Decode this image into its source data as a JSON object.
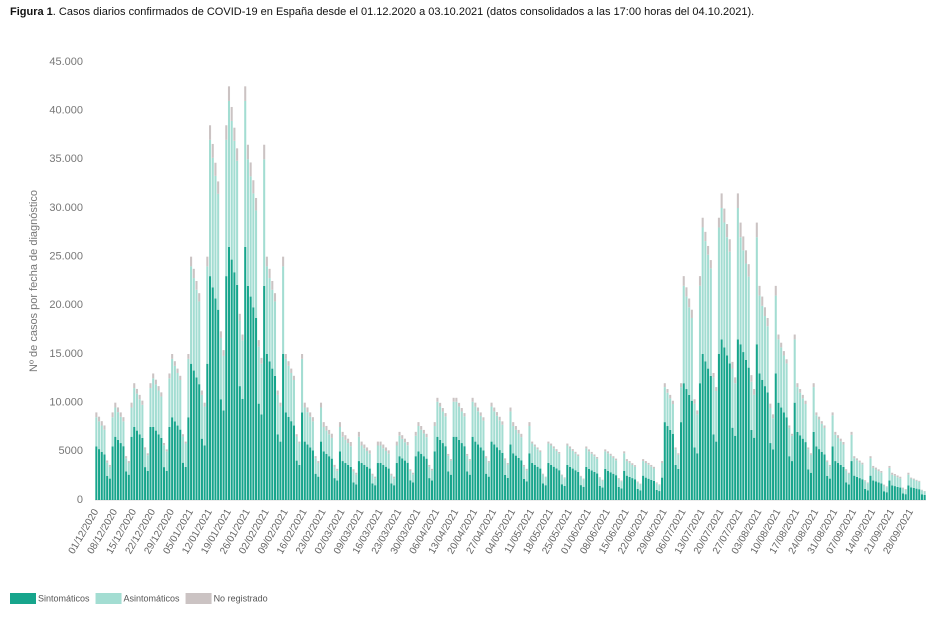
{
  "chart_data": {
    "type": "bar",
    "stacked": true,
    "title_label": "Figura 1",
    "title": ". Casos diarios confirmados de COVID-19 en España desde el 01.12.2020 a 03.10.2021 (datos consolidados a las 17:00 horas del 04.10.2021).",
    "y_label": "Nº de casos por fecha de diagnóstico",
    "ylim": [
      0,
      45000
    ],
    "yticks": [
      0,
      5000,
      {
        "value": 10000,
        "label": "10.000"
      },
      {
        "value": 15000,
        "label": "15.000"
      },
      {
        "value": 20000,
        "label": "20.000"
      },
      {
        "value": 25000,
        "label": "25.000"
      },
      {
        "value": 30000,
        "label": "30.000"
      },
      {
        "value": 35000,
        "label": "35.000"
      },
      {
        "value": 40000,
        "label": "40.000"
      },
      {
        "value": 45000,
        "label": "45.000"
      }
    ],
    "grid": false,
    "categories": [
      "01/12/2020",
      null,
      null,
      null,
      null,
      null,
      null,
      "08/12/2020",
      null,
      null,
      null,
      null,
      null,
      null,
      "15/12/2020",
      null,
      null,
      null,
      null,
      null,
      null,
      "22/12/2020",
      null,
      null,
      null,
      null,
      null,
      null,
      "29/12/2020",
      null,
      null,
      null,
      null,
      null,
      null,
      "05/01/2021",
      null,
      null,
      null,
      null,
      null,
      null,
      "12/01/2021",
      null,
      null,
      null,
      null,
      null,
      null,
      "19/01/2021",
      null,
      null,
      null,
      null,
      null,
      null,
      "26/01/2021",
      null,
      null,
      null,
      null,
      null,
      null,
      "02/02/2021",
      null,
      null,
      null,
      null,
      null,
      null,
      "09/02/2021",
      null,
      null,
      null,
      null,
      null,
      null,
      "16/02/2021",
      null,
      null,
      null,
      null,
      null,
      null,
      "23/02/2021",
      null,
      null,
      null,
      null,
      null,
      null,
      "02/03/2021",
      null,
      null,
      null,
      null,
      null,
      null,
      "09/03/2021",
      null,
      null,
      null,
      null,
      null,
      null,
      "16/03/2021",
      null,
      null,
      null,
      null,
      null,
      null,
      "23/03/2021",
      null,
      null,
      null,
      null,
      null,
      null,
      "30/03/2021",
      null,
      null,
      null,
      null,
      null,
      null,
      "06/04/2021",
      null,
      null,
      null,
      null,
      null,
      null,
      "13/04/2021",
      null,
      null,
      null,
      null,
      null,
      null,
      "20/04/2021",
      null,
      null,
      null,
      null,
      null,
      null,
      "27/04/2021",
      null,
      null,
      null,
      null,
      null,
      null,
      "04/05/2021",
      null,
      null,
      null,
      null,
      null,
      null,
      "11/05/2021",
      null,
      null,
      null,
      null,
      null,
      null,
      "18/05/2021",
      null,
      null,
      null,
      null,
      null,
      null,
      "25/05/2021",
      null,
      null,
      null,
      null,
      null,
      null,
      "01/06/2021",
      null,
      null,
      null,
      null,
      null,
      null,
      "08/06/2021",
      null,
      null,
      null,
      null,
      null,
      null,
      "15/06/2021",
      null,
      null,
      null,
      null,
      null,
      null,
      "22/06/2021",
      null,
      null,
      null,
      null,
      null,
      null,
      "29/06/2021",
      null,
      null,
      null,
      null,
      null,
      null,
      "06/07/2021",
      null,
      null,
      null,
      null,
      null,
      null,
      "13/07/2021",
      null,
      null,
      null,
      null,
      null,
      null,
      "20/07/2021",
      null,
      null,
      null,
      null,
      null,
      null,
      "27/07/2021",
      null,
      null,
      null,
      null,
      null,
      null,
      "03/08/2021",
      null,
      null,
      null,
      null,
      null,
      null,
      "10/08/2021",
      null,
      null,
      null,
      null,
      null,
      null,
      "17/08/2021",
      null,
      null,
      null,
      null,
      null,
      null,
      "24/08/2021",
      null,
      null,
      null,
      null,
      null,
      null,
      "31/08/2021",
      null,
      null,
      null,
      null,
      null,
      null,
      "07/09/2021",
      null,
      null,
      null,
      null,
      null,
      null,
      "14/09/2021",
      null,
      null,
      null,
      null,
      null,
      null,
      "21/09/2021",
      null,
      null,
      null,
      null,
      null,
      null,
      "28/09/2021",
      null,
      null,
      null,
      null,
      null
    ],
    "series": [
      {
        "name": "Sintomáticos",
        "color": "#17a58c",
        "values": [
          5500,
          5230,
          4950,
          4680,
          2480,
          2200,
          5500,
          6500,
          6180,
          5850,
          5530,
          2930,
          2600,
          6500,
          7500,
          7130,
          6750,
          6380,
          3380,
          3000,
          7500,
          7500,
          7130,
          6750,
          6380,
          3380,
          3000,
          7500,
          8500,
          8080,
          7650,
          7230,
          3830,
          3400,
          8500,
          14000,
          13300,
          12600,
          11900,
          6300,
          5600,
          14000,
          23000,
          21850,
          20700,
          19550,
          10350,
          9200,
          23000,
          26000,
          24700,
          23400,
          22100,
          11700,
          10400,
          26000,
          22000,
          20900,
          19800,
          18700,
          9900,
          8800,
          22000,
          15000,
          14250,
          13500,
          12750,
          6750,
          6000,
          15000,
          9000,
          8550,
          8100,
          7650,
          4050,
          3600,
          9000,
          6000,
          5700,
          5400,
          5100,
          2700,
          2400,
          6000,
          5000,
          4750,
          4500,
          4250,
          2250,
          2000,
          5000,
          4000,
          3800,
          3600,
          3400,
          1800,
          1600,
          4000,
          3800,
          3610,
          3420,
          3230,
          1710,
          1520,
          3800,
          3800,
          3610,
          3420,
          3230,
          1710,
          1520,
          3800,
          4500,
          4280,
          4050,
          3830,
          2030,
          1800,
          4500,
          5000,
          4750,
          4500,
          4250,
          2250,
          2000,
          5000,
          6500,
          6180,
          5850,
          5530,
          2930,
          2600,
          6500,
          6500,
          6180,
          5850,
          5530,
          2930,
          2600,
          6500,
          6000,
          5700,
          5400,
          5100,
          2700,
          2400,
          6000,
          5700,
          5420,
          5130,
          4850,
          2570,
          2280,
          5700,
          4800,
          4560,
          4320,
          4080,
          2160,
          1920,
          4800,
          3800,
          3610,
          3420,
          3230,
          1710,
          1520,
          3800,
          3600,
          3420,
          3240,
          3060,
          1620,
          1440,
          3600,
          3400,
          3230,
          3060,
          2890,
          1530,
          1360,
          3400,
          3200,
          3040,
          2880,
          2720,
          1440,
          1280,
          3200,
          3000,
          2850,
          2700,
          2550,
          1350,
          1200,
          3000,
          2500,
          2380,
          2250,
          2130,
          1130,
          1000,
          2500,
          2300,
          2190,
          2070,
          1960,
          1040,
          920,
          2300,
          8000,
          7600,
          7200,
          6800,
          3600,
          3200,
          8000,
          12000,
          11400,
          10800,
          10200,
          5400,
          4800,
          12000,
          15000,
          14250,
          13500,
          12750,
          6750,
          6000,
          15000,
          16500,
          15680,
          14850,
          14030,
          7430,
          6600,
          16500,
          16000,
          15200,
          14400,
          13600,
          7200,
          6400,
          16000,
          13000,
          12350,
          11700,
          11050,
          5850,
          5200,
          13000,
          10000,
          9500,
          9000,
          8500,
          4500,
          4000,
          10000,
          7000,
          6650,
          6300,
          5950,
          3150,
          2800,
          7000,
          5500,
          5230,
          4950,
          4680,
          2480,
          2200,
          5500,
          4000,
          3800,
          3600,
          3400,
          1800,
          1600,
          4000,
          2500,
          2380,
          2250,
          2130,
          1130,
          1000,
          2500,
          2000,
          1900,
          1800,
          1700,
          900,
          800,
          2000,
          1500,
          1430,
          1350,
          1280,
          680,
          600,
          1500,
          1300,
          1240,
          1170,
          1110,
          590,
          520
        ]
      },
      {
        "name": "Asintomáticos",
        "color": "#a3ddd2",
        "values": [
          3000,
          2850,
          2700,
          2550,
          1350,
          1200,
          3000,
          3000,
          2850,
          2700,
          2550,
          1350,
          1200,
          3000,
          4000,
          3800,
          3600,
          3400,
          1800,
          1600,
          4000,
          5000,
          4750,
          4500,
          4250,
          2250,
          2000,
          5000,
          6000,
          5700,
          5400,
          5100,
          2700,
          2400,
          6000,
          10000,
          9500,
          9000,
          8500,
          4500,
          4000,
          10000,
          14000,
          13300,
          12600,
          11900,
          6300,
          5600,
          14000,
          15000,
          14250,
          13500,
          12750,
          6750,
          6000,
          15000,
          13000,
          12350,
          11700,
          11050,
          5850,
          5200,
          13000,
          9000,
          8550,
          8100,
          7650,
          4050,
          3600,
          9000,
          5500,
          5230,
          4950,
          4680,
          2480,
          2200,
          5500,
          3500,
          3330,
          3150,
          2980,
          1580,
          1400,
          3500,
          2500,
          2380,
          2250,
          2130,
          1130,
          1000,
          2500,
          2500,
          2380,
          2250,
          2130,
          1130,
          1000,
          2500,
          1800,
          1710,
          1620,
          1530,
          810,
          720,
          1800,
          1800,
          1710,
          1620,
          1530,
          810,
          720,
          1800,
          2100,
          2000,
          1890,
          1790,
          950,
          840,
          2100,
          2600,
          2470,
          2340,
          2210,
          1170,
          1040,
          2600,
          3600,
          3420,
          3240,
          3060,
          1620,
          1440,
          3600,
          3600,
          3420,
          3240,
          3060,
          1620,
          1440,
          3600,
          3600,
          3420,
          3240,
          3060,
          1620,
          1440,
          3600,
          3400,
          3230,
          3060,
          2890,
          1530,
          1360,
          3400,
          2800,
          2660,
          2520,
          2380,
          1260,
          1120,
          2800,
          2000,
          1900,
          1800,
          1700,
          900,
          800,
          2000,
          2000,
          1900,
          1800,
          1700,
          900,
          800,
          2000,
          1900,
          1810,
          1710,
          1620,
          860,
          760,
          1900,
          1800,
          1710,
          1620,
          1530,
          810,
          720,
          1800,
          1800,
          1710,
          1620,
          1530,
          810,
          720,
          1800,
          1500,
          1430,
          1350,
          1280,
          680,
          600,
          1500,
          1500,
          1430,
          1350,
          1280,
          680,
          600,
          1500,
          3600,
          3420,
          3240,
          3060,
          1620,
          1440,
          3600,
          10000,
          9500,
          9000,
          8500,
          4500,
          4000,
          10000,
          13000,
          12350,
          11700,
          11050,
          5850,
          5200,
          13000,
          13500,
          12830,
          12150,
          11480,
          6080,
          5400,
          13500,
          11000,
          10450,
          9900,
          9350,
          4950,
          4400,
          11000,
          8000,
          7600,
          7200,
          6800,
          3600,
          3200,
          8000,
          6500,
          6180,
          5850,
          5530,
          2930,
          2600,
          6500,
          4600,
          4370,
          4140,
          3910,
          2070,
          1840,
          4600,
          3200,
          3040,
          2880,
          2720,
          1440,
          1280,
          3200,
          2700,
          2570,
          2430,
          2300,
          1220,
          1080,
          2700,
          1800,
          1710,
          1620,
          1530,
          810,
          720,
          1800,
          1300,
          1240,
          1170,
          1110,
          590,
          520,
          1300,
          1100,
          1050,
          990,
          940,
          500,
          440,
          1100,
          900,
          860,
          810,
          770,
          410,
          360
        ]
      },
      {
        "name": "No registrado",
        "color": "#cbc3c3",
        "values": [
          500,
          480,
          450,
          430,
          230,
          200,
          500,
          500,
          480,
          450,
          430,
          230,
          200,
          500,
          500,
          480,
          450,
          430,
          230,
          200,
          500,
          500,
          480,
          450,
          430,
          230,
          200,
          500,
          500,
          480,
          450,
          430,
          230,
          200,
          500,
          1000,
          950,
          900,
          850,
          450,
          400,
          1000,
          1500,
          1430,
          1350,
          1280,
          680,
          600,
          1500,
          1500,
          1430,
          1350,
          1280,
          680,
          600,
          1500,
          1500,
          1430,
          1350,
          1280,
          680,
          600,
          1500,
          1000,
          950,
          900,
          850,
          450,
          400,
          1000,
          500,
          480,
          450,
          430,
          230,
          200,
          500,
          500,
          480,
          450,
          430,
          230,
          200,
          500,
          500,
          480,
          450,
          430,
          230,
          200,
          500,
          500,
          480,
          450,
          430,
          230,
          200,
          500,
          400,
          380,
          360,
          340,
          180,
          160,
          400,
          400,
          380,
          360,
          340,
          180,
          160,
          400,
          400,
          380,
          360,
          340,
          180,
          160,
          400,
          400,
          380,
          360,
          340,
          180,
          160,
          400,
          400,
          380,
          360,
          340,
          180,
          160,
          400,
          400,
          380,
          360,
          340,
          180,
          160,
          400,
          400,
          380,
          360,
          340,
          180,
          160,
          400,
          400,
          380,
          360,
          340,
          180,
          160,
          400,
          400,
          380,
          360,
          340,
          180,
          160,
          400,
          200,
          190,
          180,
          170,
          90,
          80,
          200,
          200,
          190,
          180,
          170,
          90,
          80,
          200,
          200,
          190,
          180,
          170,
          90,
          80,
          200,
          200,
          190,
          180,
          170,
          90,
          80,
          200,
          200,
          190,
          180,
          170,
          90,
          80,
          200,
          200,
          190,
          180,
          170,
          90,
          80,
          200,
          200,
          190,
          180,
          170,
          90,
          80,
          200,
          400,
          380,
          360,
          340,
          180,
          160,
          400,
          1000,
          950,
          900,
          850,
          450,
          400,
          1000,
          1000,
          950,
          900,
          850,
          450,
          400,
          1000,
          1500,
          1430,
          1350,
          1280,
          680,
          600,
          1500,
          1500,
          1430,
          1350,
          1280,
          680,
          600,
          1500,
          1000,
          950,
          900,
          850,
          450,
          400,
          1000,
          500,
          480,
          450,
          430,
          230,
          200,
          500,
          400,
          380,
          360,
          340,
          180,
          160,
          400,
          300,
          290,
          270,
          260,
          140,
          120,
          300,
          300,
          290,
          270,
          260,
          140,
          120,
          300,
          200,
          190,
          180,
          170,
          90,
          80,
          200,
          200,
          190,
          180,
          170,
          90,
          80,
          200,
          200,
          190,
          180,
          170,
          90,
          80,
          200,
          100,
          100,
          90,
          90,
          50,
          40
        ]
      }
    ]
  }
}
